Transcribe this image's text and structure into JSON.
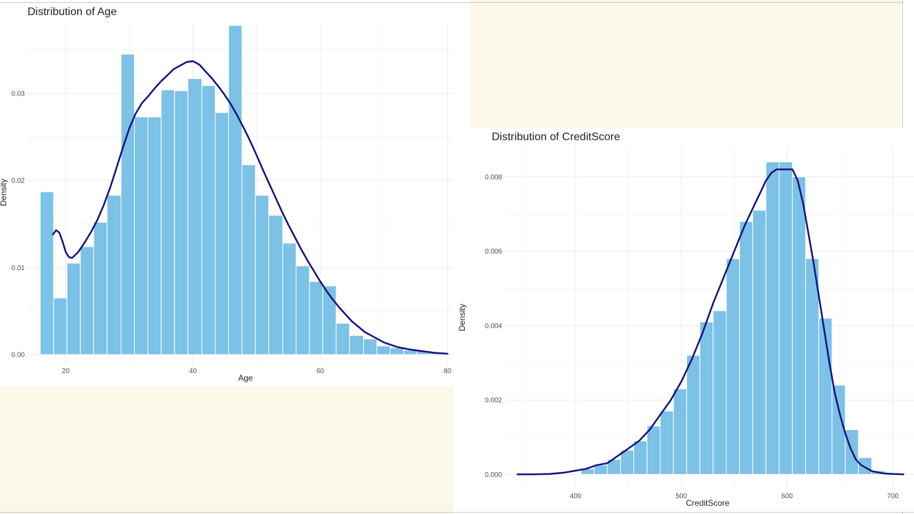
{
  "colors": {
    "background": "#ffffff",
    "notebook_background": "#fbf7e9",
    "bar_fill": "#7cc1e6",
    "bar_outline": "#ffffff",
    "density_line": "#14137d",
    "grid": "#ebebeb",
    "text": "#222222",
    "tick_text": "#4d4d4d"
  },
  "chart_data": [
    {
      "type": "bar",
      "overlay": "density-line",
      "title": "Distribution of Age",
      "xlabel": "Age",
      "ylabel": "Density",
      "xlim": [
        14,
        81
      ],
      "ylim": [
        -0.0011,
        0.0382
      ],
      "x_ticks": [
        20,
        40,
        60,
        80
      ],
      "x_tick_labels": [
        "20",
        "40",
        "60",
        "80"
      ],
      "y_ticks": [
        0.0,
        0.01,
        0.02,
        0.03
      ],
      "y_tick_labels": [
        "0.00",
        "0.01",
        "0.02",
        "0.03"
      ],
      "grid": true,
      "bins": [
        {
          "x0": 16.0,
          "x1": 18.1,
          "density": 0.0187
        },
        {
          "x0": 18.1,
          "x1": 20.2,
          "density": 0.0065
        },
        {
          "x0": 20.2,
          "x1": 22.3,
          "density": 0.0105
        },
        {
          "x0": 22.3,
          "x1": 24.4,
          "density": 0.0124
        },
        {
          "x0": 24.4,
          "x1": 26.5,
          "density": 0.0152
        },
        {
          "x0": 26.5,
          "x1": 28.7,
          "density": 0.0183
        },
        {
          "x0": 28.7,
          "x1": 30.8,
          "density": 0.0345
        },
        {
          "x0": 30.8,
          "x1": 32.9,
          "density": 0.0273
        },
        {
          "x0": 32.9,
          "x1": 35.0,
          "density": 0.0273
        },
        {
          "x0": 35.0,
          "x1": 37.1,
          "density": 0.0304
        },
        {
          "x0": 37.1,
          "x1": 39.2,
          "density": 0.0303
        },
        {
          "x0": 39.2,
          "x1": 41.4,
          "density": 0.0317
        },
        {
          "x0": 41.4,
          "x1": 43.5,
          "density": 0.0309
        },
        {
          "x0": 43.5,
          "x1": 45.6,
          "density": 0.0278
        },
        {
          "x0": 45.6,
          "x1": 47.7,
          "density": 0.0378
        },
        {
          "x0": 47.7,
          "x1": 49.8,
          "density": 0.0218
        },
        {
          "x0": 49.8,
          "x1": 51.9,
          "density": 0.0183
        },
        {
          "x0": 51.9,
          "x1": 54.1,
          "density": 0.016
        },
        {
          "x0": 54.1,
          "x1": 56.2,
          "density": 0.0128
        },
        {
          "x0": 56.2,
          "x1": 58.3,
          "density": 0.0102
        },
        {
          "x0": 58.3,
          "x1": 60.4,
          "density": 0.0084
        },
        {
          "x0": 60.4,
          "x1": 62.5,
          "density": 0.0079
        },
        {
          "x0": 62.5,
          "x1": 64.6,
          "density": 0.0036
        },
        {
          "x0": 64.6,
          "x1": 66.8,
          "density": 0.0022
        },
        {
          "x0": 66.8,
          "x1": 68.9,
          "density": 0.0018
        },
        {
          "x0": 68.9,
          "x1": 71.0,
          "density": 0.001
        },
        {
          "x0": 71.0,
          "x1": 73.1,
          "density": 0.0008
        },
        {
          "x0": 73.1,
          "x1": 75.2,
          "density": 0.0005
        },
        {
          "x0": 75.2,
          "x1": 77.3,
          "density": 0.0004
        },
        {
          "x0": 77.3,
          "x1": 79.5,
          "density": 0.0003
        }
      ],
      "density_curve": {
        "x": [
          18,
          18.5,
          19,
          19.5,
          20,
          20.5,
          21,
          22,
          23,
          24,
          25,
          26,
          27,
          28,
          29,
          30,
          31,
          32,
          33,
          34,
          35,
          36,
          37,
          38,
          39,
          40,
          41,
          42,
          43,
          44,
          45,
          46,
          47,
          48,
          49,
          50,
          51,
          52,
          53,
          54,
          55,
          56,
          57,
          58,
          59,
          60,
          61,
          62,
          63,
          64,
          65,
          66,
          67,
          68,
          69,
          70,
          72,
          74,
          76,
          78,
          80
        ],
        "y": [
          0.0138,
          0.0143,
          0.014,
          0.013,
          0.0118,
          0.0112,
          0.0111,
          0.0118,
          0.0129,
          0.0141,
          0.0155,
          0.0172,
          0.0192,
          0.0215,
          0.0238,
          0.026,
          0.0277,
          0.0289,
          0.0297,
          0.0306,
          0.0314,
          0.0321,
          0.0328,
          0.0332,
          0.0336,
          0.0337,
          0.0333,
          0.0325,
          0.0317,
          0.0308,
          0.0298,
          0.0287,
          0.0274,
          0.026,
          0.0245,
          0.0229,
          0.0212,
          0.0196,
          0.018,
          0.0164,
          0.0149,
          0.0135,
          0.0121,
          0.0108,
          0.0096,
          0.0084,
          0.0073,
          0.0063,
          0.0054,
          0.0046,
          0.0038,
          0.0032,
          0.0026,
          0.0022,
          0.0018,
          0.0014,
          0.0009,
          0.0006,
          0.0004,
          0.0002,
          0.0001
        ]
      }
    },
    {
      "type": "bar",
      "overlay": "density-line",
      "title": "Distribution of CreditScore",
      "xlabel": "CreditScore",
      "ylabel": "Density",
      "xlim": [
        333,
        720
      ],
      "ylim": [
        -0.0004,
        0.0088
      ],
      "x_ticks": [
        400,
        500,
        600,
        700
      ],
      "x_tick_labels": [
        "400",
        "500",
        "600",
        "700"
      ],
      "y_ticks": [
        0.0,
        0.002,
        0.004,
        0.006,
        0.008
      ],
      "y_tick_labels": [
        "0.000",
        "0.002",
        "0.004",
        "0.006",
        "0.008"
      ],
      "grid": true,
      "bins": [
        {
          "x0": 405,
          "x1": 417.5,
          "density": 0.00015
        },
        {
          "x0": 417.5,
          "x1": 430,
          "density": 0.00025
        },
        {
          "x0": 430,
          "x1": 442.5,
          "density": 0.0004
        },
        {
          "x0": 442.5,
          "x1": 455,
          "density": 0.00065
        },
        {
          "x0": 455,
          "x1": 467.5,
          "density": 0.0009
        },
        {
          "x0": 467.5,
          "x1": 480,
          "density": 0.0013
        },
        {
          "x0": 480,
          "x1": 492.5,
          "density": 0.0017
        },
        {
          "x0": 492.5,
          "x1": 505,
          "density": 0.0023
        },
        {
          "x0": 505,
          "x1": 517.5,
          "density": 0.0032
        },
        {
          "x0": 517.5,
          "x1": 530,
          "density": 0.0041
        },
        {
          "x0": 530,
          "x1": 542.5,
          "density": 0.0044
        },
        {
          "x0": 542.5,
          "x1": 555,
          "density": 0.0058
        },
        {
          "x0": 555,
          "x1": 567.5,
          "density": 0.0068
        },
        {
          "x0": 567.5,
          "x1": 580,
          "density": 0.0071
        },
        {
          "x0": 580,
          "x1": 592.5,
          "density": 0.0084
        },
        {
          "x0": 592.5,
          "x1": 605,
          "density": 0.0084
        },
        {
          "x0": 605,
          "x1": 617.5,
          "density": 0.008
        },
        {
          "x0": 617.5,
          "x1": 630,
          "density": 0.0058
        },
        {
          "x0": 630,
          "x1": 642.5,
          "density": 0.0042
        },
        {
          "x0": 642.5,
          "x1": 655,
          "density": 0.0024
        },
        {
          "x0": 655,
          "x1": 667.5,
          "density": 0.0012
        },
        {
          "x0": 667.5,
          "x1": 680,
          "density": 0.00045
        },
        {
          "x0": 680,
          "x1": 692.5,
          "density": 0.0001
        }
      ],
      "density_curve": {
        "x": [
          345,
          360,
          375,
          390,
          400,
          410,
          420,
          430,
          440,
          450,
          460,
          470,
          480,
          490,
          500,
          510,
          520,
          530,
          540,
          550,
          560,
          570,
          575,
          580,
          585,
          590,
          595,
          600,
          605,
          610,
          615,
          620,
          625,
          630,
          635,
          640,
          645,
          650,
          655,
          660,
          665,
          670,
          680,
          690,
          700,
          710
        ],
        "y": [
          0,
          0,
          1e-05,
          5e-05,
          0.0001,
          0.00015,
          0.00025,
          0.0003,
          0.0005,
          0.0007,
          0.0009,
          0.0012,
          0.0016,
          0.002,
          0.0025,
          0.0031,
          0.0038,
          0.0046,
          0.0053,
          0.006,
          0.0067,
          0.0073,
          0.0076,
          0.0079,
          0.0081,
          0.0082,
          0.0082,
          0.0082,
          0.0082,
          0.0079,
          0.0073,
          0.0065,
          0.0057,
          0.0048,
          0.0039,
          0.003,
          0.0022,
          0.0016,
          0.0011,
          0.0007,
          0.0004,
          0.00025,
          9e-05,
          3e-05,
          1e-05,
          0
        ]
      }
    }
  ]
}
